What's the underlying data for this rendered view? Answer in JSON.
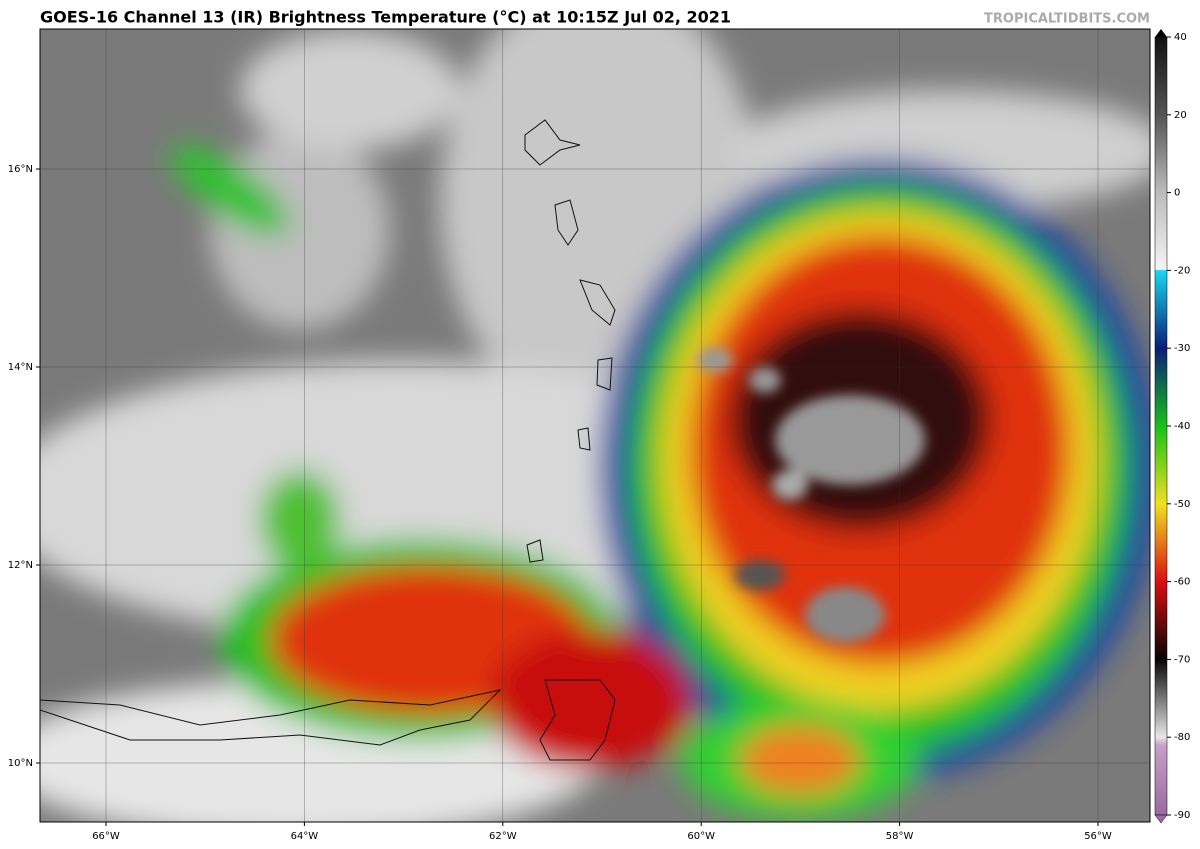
{
  "header": {
    "title": "GOES-16 Channel 13 (IR) Brightness Temperature (°C) at 10:15Z Jul 02, 2021",
    "credit": "TROPICALTIDBITS.COM"
  },
  "map": {
    "lon_labels": [
      "66°W",
      "64°W",
      "62°W",
      "60°W",
      "58°W",
      "56°W"
    ],
    "lat_labels": [
      "16°N",
      "14°N",
      "12°N",
      "10°N"
    ]
  },
  "colorbar": {
    "ticks": [
      40,
      20,
      0,
      -20,
      -30,
      -40,
      -50,
      -60,
      -70,
      -80,
      -90
    ]
  }
}
